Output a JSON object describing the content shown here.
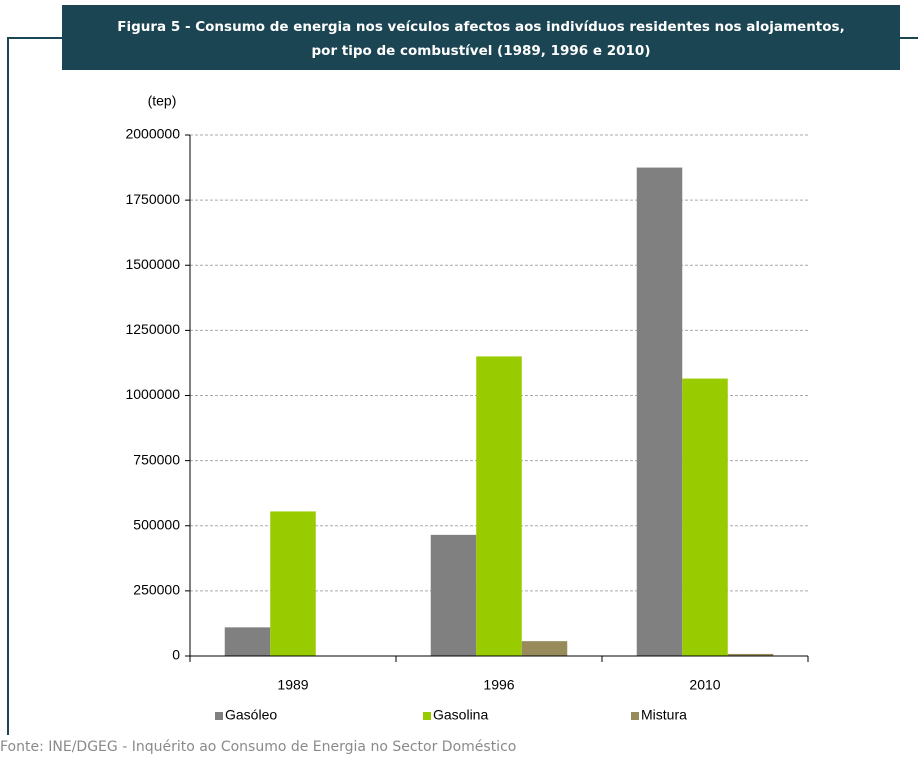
{
  "chart_data": {
    "type": "bar",
    "title": [
      "Figura 5 - Consumo de energia nos veículos afectos aos indivíduos residentes nos alojamentos,",
      "por tipo de combustível  (1989, 1996 e 2010)"
    ],
    "y_label": "(tep)",
    "categories": [
      "1989",
      "1996",
      "2010"
    ],
    "series": [
      {
        "name": "Gasóleo",
        "color": "#808080",
        "values": [
          110000,
          465000,
          1875000
        ]
      },
      {
        "name": "Gasolina",
        "color": "#99cc00",
        "values": [
          555000,
          1150000,
          1065000
        ]
      },
      {
        "name": "Mistura",
        "color": "#978b5c",
        "values": [
          0,
          57000,
          8000
        ]
      }
    ],
    "ylim": [
      0,
      2000000
    ],
    "yticks": [
      0,
      250000,
      500000,
      750000,
      1000000,
      1250000,
      1500000,
      1750000,
      2000000
    ],
    "grid": true,
    "legend": "bottom",
    "source": "Fonte: INE/DGEG - Inquérito ao Consumo de Energia no Sector Doméstico"
  }
}
